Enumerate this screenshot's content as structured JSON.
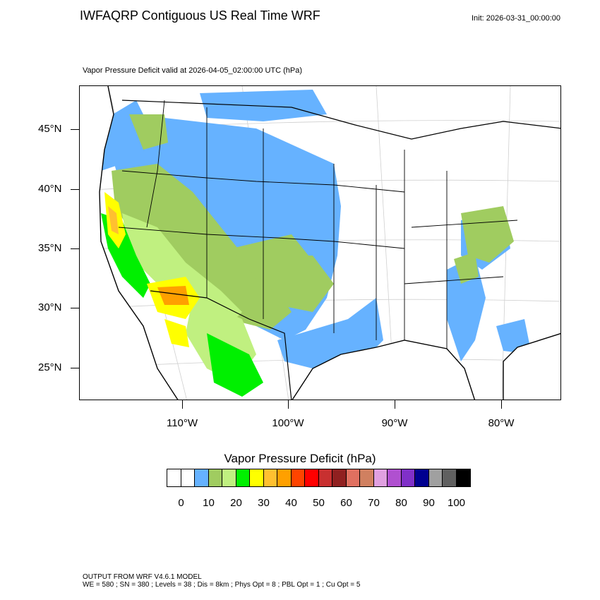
{
  "header": {
    "title": "IWFAQRP Contiguous US Real Time WRF",
    "init": "Init: 2026-03-31_00:00:00",
    "subtitle": "Vapor Pressure Deficit valid at 2026-04-05_02:00:00 UTC   (hPa)"
  },
  "map": {
    "lat_labels": [
      "45°N",
      "40°N",
      "35°N",
      "30°N",
      "25°N"
    ],
    "lon_labels": [
      "110°W",
      "100°W",
      "90°W",
      "80°W"
    ],
    "legend_colors": {
      "ocean": "#ffffff",
      "land_low": "#ffffff",
      "vpd_10": "#66b2ff",
      "vpd_15": "#a0cc60",
      "vpd_20": "#c0f080",
      "vpd_25": "#00f000",
      "vpd_30": "#ffff00",
      "vpd_35": "#ffc030",
      "boundary": "#000000"
    }
  },
  "colorbar": {
    "title": "Vapor Pressure Deficit  (hPa)",
    "colors": [
      "#ffffff",
      "#ffffff",
      "#66b2ff",
      "#a0cc60",
      "#c0f080",
      "#00f000",
      "#ffff00",
      "#ffc030",
      "#ffa000",
      "#ff4400",
      "#ff0000",
      "#c83030",
      "#902020",
      "#e07060",
      "#d08060",
      "#e0a0e0",
      "#b050d0",
      "#8030c8",
      "#000090",
      "#a0a0a0",
      "#606060",
      "#000000"
    ],
    "labels": [
      "0",
      "10",
      "20",
      "30",
      "40",
      "50",
      "60",
      "70",
      "80",
      "90",
      "100"
    ]
  },
  "footer": {
    "line1": "OUTPUT FROM WRF V4.6.1 MODEL",
    "line2": "WE = 580 ; SN = 380 ; Levels = 38 ; Dis = 8km ; Phys Opt = 8 ; PBL Opt = 1 ; Cu Opt = 5"
  }
}
